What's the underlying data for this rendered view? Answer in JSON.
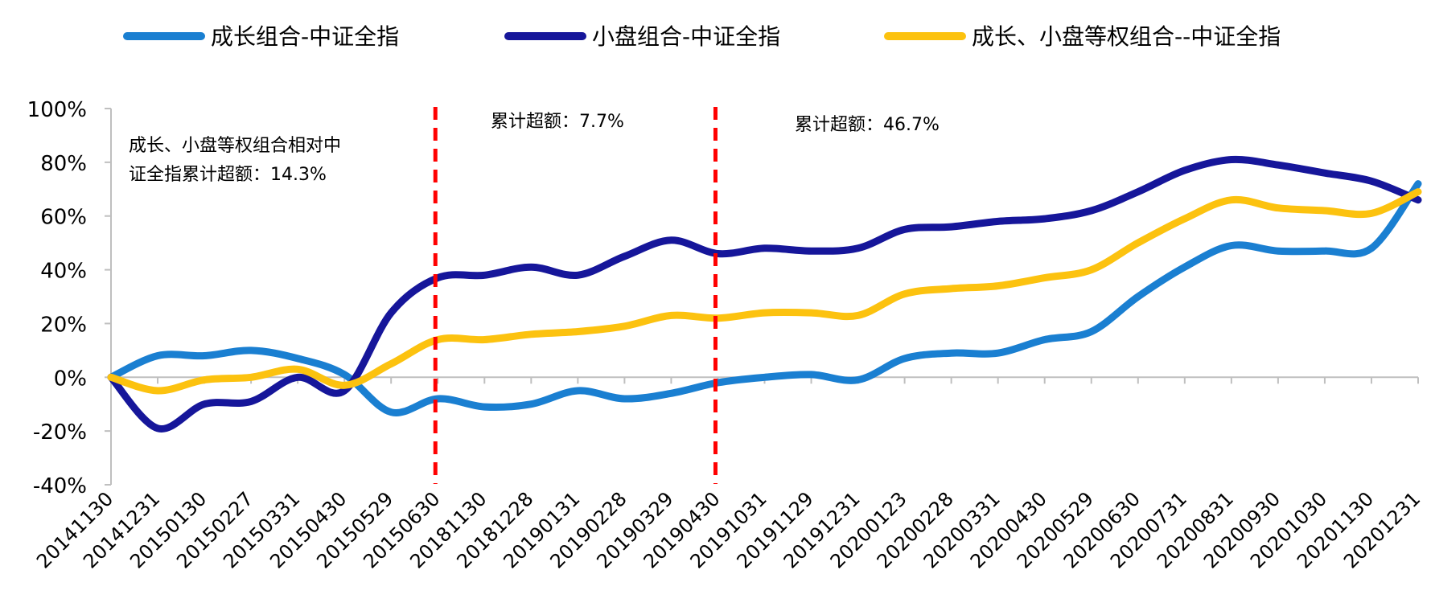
{
  "chart_data": {
    "type": "line",
    "title": "",
    "xlabel": "",
    "ylabel": "",
    "categories": [
      "20141130",
      "20141231",
      "20150130",
      "20150227",
      "20150331",
      "20150430",
      "20150529",
      "20150630",
      "20181130",
      "20181228",
      "20190131",
      "20190228",
      "20190329",
      "20190430",
      "20191031",
      "20191129",
      "20191231",
      "20200123",
      "20200228",
      "20200331",
      "20200430",
      "20200529",
      "20200630",
      "20200731",
      "20200831",
      "20200930",
      "20201030",
      "20201130",
      "20201231"
    ],
    "ylim": [
      -40,
      100
    ],
    "yticks": [
      -40,
      -20,
      0,
      20,
      40,
      60,
      80,
      100
    ],
    "ytick_labels": [
      "-40%",
      "-20%",
      "0%",
      "20%",
      "40%",
      "60%",
      "80%",
      "100%"
    ],
    "legend_position": "top",
    "series": [
      {
        "name": "成长组合-中证全指",
        "color": "#1a7fd1",
        "values": [
          0,
          8,
          8,
          10,
          7,
          1,
          -13,
          -8,
          -11,
          -10,
          -5,
          -8,
          -6,
          -2,
          0,
          1,
          -1,
          7,
          9,
          9,
          14,
          17,
          30,
          41,
          49,
          47,
          47,
          48,
          72
        ]
      },
      {
        "name": "小盘组合-中证全指",
        "color": "#16169a",
        "values": [
          0,
          -19,
          -10,
          -9,
          0,
          -5,
          24,
          37,
          38,
          41,
          38,
          45,
          51,
          46,
          48,
          47,
          48,
          55,
          56,
          58,
          59,
          62,
          69,
          77,
          81,
          79,
          76,
          73,
          66
        ]
      },
      {
        "name": "成长、小盘等权组合--中证全指",
        "color": "#fcc20f",
        "values": [
          0,
          -5,
          -1,
          0,
          3,
          -3,
          5,
          14,
          14,
          16,
          17,
          19,
          23,
          22,
          24,
          24,
          23,
          31,
          33,
          34,
          37,
          40,
          50,
          59,
          66,
          63,
          62,
          61,
          69
        ]
      }
    ],
    "vlines": [
      {
        "at_category": "20150630",
        "color": "#ff0000"
      },
      {
        "at_category": "20190430",
        "color": "#ff0000"
      }
    ],
    "annotations": [
      {
        "line1": "成长、小盘等权组合相对中",
        "line2": "证全指累计超额：14.3%"
      },
      {
        "text": "累计超额：7.7%"
      },
      {
        "text": "累计超额：46.7%"
      }
    ]
  }
}
